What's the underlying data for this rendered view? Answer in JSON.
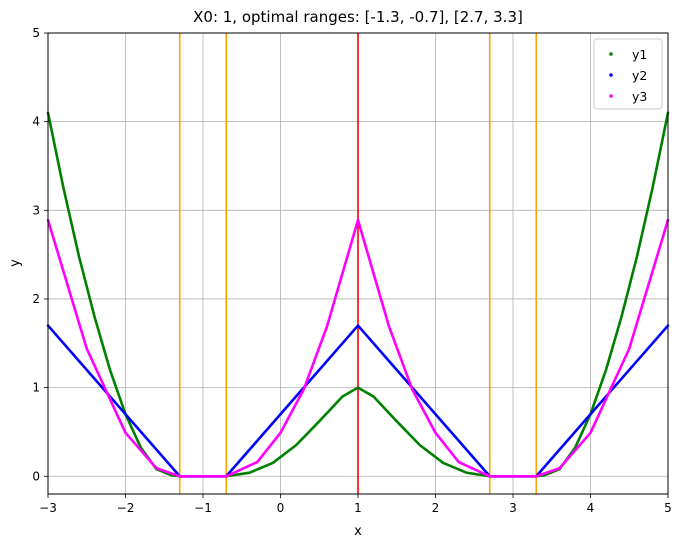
{
  "chart_data": {
    "type": "scatter",
    "title": "X0: 1, optimal ranges: [-1.3, -0.7], [2.7, 3.3]",
    "xlabel": "x",
    "ylabel": "y",
    "xlim": [
      -3,
      5
    ],
    "ylim": [
      -0.2,
      5
    ],
    "xticks": [
      -3,
      -2,
      -1,
      0,
      1,
      2,
      3,
      4,
      5
    ],
    "yticks": [
      0,
      1,
      2,
      3,
      4,
      5
    ],
    "x_tick_labels": [
      "−3",
      "−2",
      "−1",
      "0",
      "1",
      "2",
      "3",
      "4",
      "5"
    ],
    "y_tick_labels": [
      "0",
      "1",
      "2",
      "3",
      "4",
      "5"
    ],
    "grid": true,
    "legend_position": "top-right",
    "x_range": [
      -3,
      5
    ],
    "series": [
      {
        "name": "y1",
        "color": "#008000",
        "piecewise": [
          {
            "x_from": -3.0,
            "x_to": -1.3,
            "x": [
              -3.0,
              -2.8,
              -2.6,
              -2.4,
              -2.2,
              -2.0,
              -1.8,
              -1.6,
              -1.4,
              -1.3
            ],
            "y": [
              4.1,
              3.25,
              2.48,
              1.8,
              1.2,
              0.7,
              0.32,
              0.08,
              0.01,
              0.0
            ]
          },
          {
            "x_from": -1.3,
            "x_to": -0.7,
            "x": [
              -1.3,
              -0.7
            ],
            "y": [
              0,
              0
            ]
          },
          {
            "x_from": -0.7,
            "x_to": 2.7,
            "x": [
              -0.7,
              -0.4,
              -0.1,
              0.2,
              0.5,
              0.8,
              1.0,
              1.2,
              1.5,
              1.8,
              2.1,
              2.4,
              2.7
            ],
            "y": [
              0.0,
              0.04,
              0.15,
              0.35,
              0.62,
              0.9,
              1.0,
              0.9,
              0.62,
              0.35,
              0.15,
              0.04,
              0.0
            ]
          },
          {
            "x_from": 2.7,
            "x_to": 3.3,
            "x": [
              2.7,
              3.3
            ],
            "y": [
              0,
              0
            ]
          },
          {
            "x_from": 3.3,
            "x_to": 5.0,
            "x": [
              3.3,
              3.4,
              3.6,
              3.8,
              4.0,
              4.2,
              4.4,
              4.6,
              4.8,
              5.0
            ],
            "y": [
              0.0,
              0.01,
              0.08,
              0.32,
              0.7,
              1.2,
              1.8,
              2.48,
              3.25,
              4.1
            ]
          }
        ]
      },
      {
        "name": "y2",
        "color": "#0000ff",
        "piecewise": [
          {
            "x_from": -3.0,
            "x_to": -1.3,
            "x": [
              -3.0,
              -1.3
            ],
            "y": [
              1.7,
              0.0
            ]
          },
          {
            "x_from": -1.3,
            "x_to": -0.7,
            "x": [
              -1.3,
              -0.7
            ],
            "y": [
              0,
              0
            ]
          },
          {
            "x_from": -0.7,
            "x_to": 1.0,
            "x": [
              -0.7,
              1.0
            ],
            "y": [
              0.0,
              1.7
            ]
          },
          {
            "x_from": 1.0,
            "x_to": 2.7,
            "x": [
              1.0,
              2.7
            ],
            "y": [
              1.7,
              0.0
            ]
          },
          {
            "x_from": 2.7,
            "x_to": 3.3,
            "x": [
              2.7,
              3.3
            ],
            "y": [
              0,
              0
            ]
          },
          {
            "x_from": 3.3,
            "x_to": 5.0,
            "x": [
              3.3,
              5.0
            ],
            "y": [
              0.0,
              1.7
            ]
          }
        ]
      },
      {
        "name": "y3",
        "color": "#ff00ff",
        "piecewise": [
          {
            "x_from": -3.0,
            "x_to": -1.3,
            "x": [
              -3.0,
              -2.5,
              -2.0,
              -1.6,
              -1.3
            ],
            "y": [
              2.89,
              1.44,
              0.49,
              0.09,
              0.0
            ]
          },
          {
            "x_from": -1.3,
            "x_to": -0.7,
            "x": [
              -1.3,
              -0.7
            ],
            "y": [
              0,
              0
            ]
          },
          {
            "x_from": -0.7,
            "x_to": 1.0,
            "x": [
              -0.7,
              -0.3,
              0.0,
              0.3,
              0.6,
              1.0
            ],
            "y": [
              0.0,
              0.16,
              0.49,
              0.98,
              1.69,
              2.89
            ]
          },
          {
            "x_from": 1.0,
            "x_to": 2.7,
            "x": [
              1.0,
              1.4,
              1.7,
              2.0,
              2.3,
              2.7
            ],
            "y": [
              2.89,
              1.69,
              0.98,
              0.49,
              0.16,
              0.0
            ]
          },
          {
            "x_from": 2.7,
            "x_to": 3.3,
            "x": [
              2.7,
              3.3
            ],
            "y": [
              0,
              0
            ]
          },
          {
            "x_from": 3.3,
            "x_to": 5.0,
            "x": [
              3.3,
              3.6,
              4.0,
              4.5,
              5.0
            ],
            "y": [
              0.0,
              0.09,
              0.49,
              1.44,
              2.89
            ]
          }
        ]
      }
    ],
    "vlines": [
      {
        "x": -1.3,
        "color": "#ffa500"
      },
      {
        "x": -0.7,
        "color": "#ffa500"
      },
      {
        "x": 1.0,
        "color": "#ff0000"
      },
      {
        "x": 2.7,
        "color": "#ffa500"
      },
      {
        "x": 3.3,
        "color": "#ffa500"
      }
    ]
  }
}
